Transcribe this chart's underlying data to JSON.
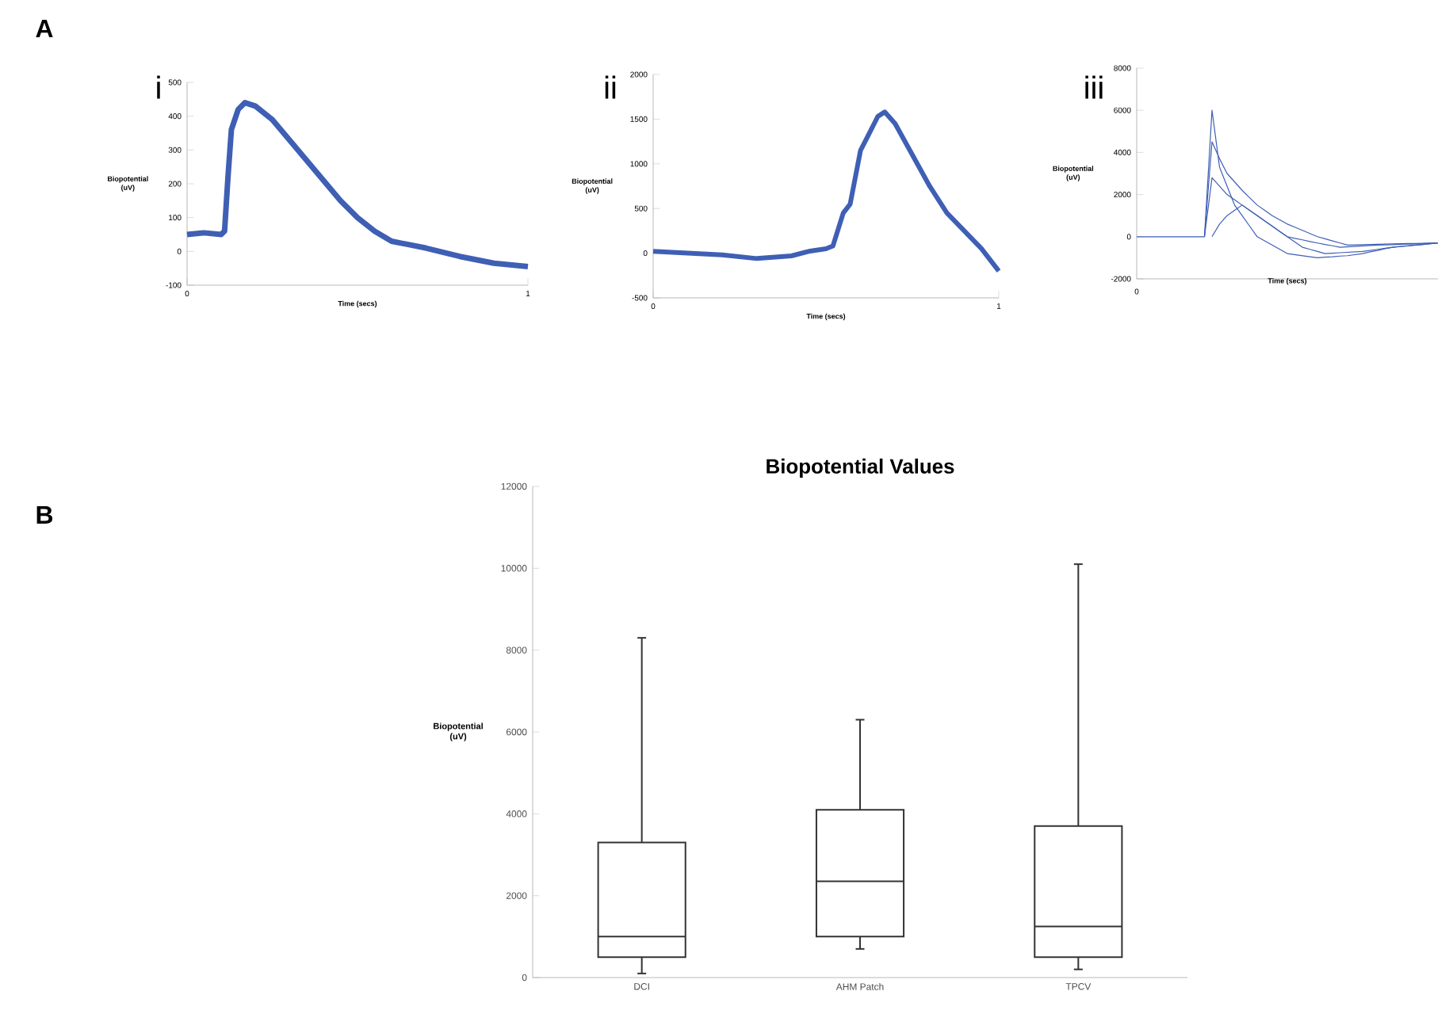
{
  "chart_data": [
    {
      "type": "line",
      "xlabel": "Time (secs)",
      "ylabel": "Biopotential (uV)",
      "annotations": [
        "A",
        "i"
      ],
      "xlim": [
        0,
        1
      ],
      "xticks": [
        0,
        1
      ],
      "ylim": [
        -100,
        500
      ],
      "yticks": [
        -100,
        0,
        100,
        200,
        300,
        400,
        500
      ],
      "x": [
        0,
        0.05,
        0.1,
        0.11,
        0.12,
        0.13,
        0.15,
        0.17,
        0.2,
        0.25,
        0.3,
        0.35,
        0.4,
        0.45,
        0.5,
        0.55,
        0.6,
        0.7,
        0.8,
        0.9,
        1
      ],
      "series": [
        {
          "color": "#3f5fb5",
          "values": [
            50,
            55,
            50,
            60,
            220,
            360,
            420,
            440,
            430,
            390,
            330,
            270,
            210,
            150,
            100,
            60,
            30,
            10,
            -15,
            -35,
            -45
          ]
        }
      ]
    },
    {
      "type": "line",
      "xlabel": "Time (secs)",
      "ylabel": "Biopotential (uV)",
      "annotations": [
        "ii"
      ],
      "xlim": [
        0,
        1
      ],
      "xticks": [
        0,
        1
      ],
      "ylim": [
        -500,
        2000
      ],
      "yticks": [
        -500,
        0,
        500,
        1000,
        1500,
        2000
      ],
      "x": [
        0,
        0.1,
        0.2,
        0.3,
        0.4,
        0.45,
        0.5,
        0.52,
        0.55,
        0.57,
        0.6,
        0.62,
        0.65,
        0.67,
        0.7,
        0.75,
        0.8,
        0.85,
        0.9,
        0.95,
        1
      ],
      "series": [
        {
          "color": "#3f5fb5",
          "values": [
            20,
            0,
            -20,
            -60,
            -30,
            20,
            50,
            80,
            450,
            550,
            1150,
            1300,
            1530,
            1580,
            1450,
            1100,
            750,
            450,
            250,
            50,
            -200
          ]
        }
      ]
    },
    {
      "type": "line",
      "xlabel": "Time (secs)",
      "ylabel": "Biopotential (uV)",
      "annotations": [
        "iii",
        "0"
      ],
      "ylim": [
        -2000,
        8000
      ],
      "yticks": [
        -2000,
        0,
        2000,
        4000,
        6000,
        8000
      ],
      "categories": [
        null,
        null,
        null,
        null,
        null,
        null,
        null,
        null,
        null,
        null,
        null,
        null,
        null,
        null,
        null,
        null,
        null,
        null,
        null,
        null,
        null,
        null,
        null,
        null,
        null,
        null,
        null,
        null,
        null,
        null,
        null,
        null,
        null,
        null,
        null,
        null,
        null,
        null,
        null,
        null,
        null
      ],
      "series": [
        {
          "color": "#3f5fb5",
          "values": [
            0,
            0,
            0,
            0,
            0,
            0,
            0,
            0,
            0,
            0,
            6000,
            3300,
            2400,
            1500,
            1000,
            500,
            0,
            -200,
            -400,
            -600,
            -800,
            -850,
            -900,
            -950,
            -1000,
            -970,
            -950,
            -920,
            -900,
            -850,
            -800,
            -720,
            -650,
            -570,
            -500,
            -460,
            -430,
            -400,
            -370,
            -330,
            -300
          ]
        },
        {
          "color": "#3f5fb5",
          "values": [
            null,
            null,
            null,
            null,
            null,
            null,
            null,
            null,
            null,
            0,
            4500,
            3700,
            3000,
            2600,
            2200,
            1850,
            1500,
            1250,
            1000,
            800,
            600,
            450,
            300,
            150,
            0,
            -100,
            -200,
            -300,
            -400,
            -390,
            -380,
            -370,
            -360,
            -350,
            -340,
            -330,
            -320,
            -320,
            -310,
            -300,
            -300
          ]
        },
        {
          "color": "#3f5fb5",
          "values": [
            null,
            null,
            null,
            null,
            null,
            null,
            null,
            null,
            null,
            0,
            2800,
            2400,
            2000,
            1750,
            1500,
            1250,
            1000,
            750,
            500,
            250,
            0,
            -80,
            -150,
            -230,
            -300,
            -370,
            -430,
            -500,
            -480,
            -460,
            -440,
            -420,
            -400,
            -390,
            -380,
            -360,
            -350,
            -340,
            -330,
            -310,
            -300
          ]
        },
        {
          "color": "#3f5fb5",
          "values": [
            null,
            null,
            null,
            null,
            null,
            null,
            null,
            null,
            null,
            null,
            0,
            600,
            1000,
            1250,
            1500,
            1250,
            1000,
            750,
            500,
            250,
            0,
            -250,
            -500,
            -600,
            -700,
            -800,
            -780,
            -760,
            -740,
            -720,
            -700,
            -650,
            -600,
            -550,
            -500,
            -470,
            -440,
            -400,
            -370,
            -330,
            -300
          ]
        }
      ]
    },
    {
      "type": "box",
      "title": "Biopotential Values",
      "ylabel": "Biopotential (uV)",
      "annotations": [
        "B"
      ],
      "categories": [
        "DCI",
        "AHM Patch",
        "TPCV"
      ],
      "ylim": [
        0,
        12000
      ],
      "yticks": [
        0,
        2000,
        4000,
        6000,
        8000,
        10000,
        12000
      ],
      "boxes": [
        {
          "low": 100,
          "q1": 500,
          "median": 1000,
          "q3": 3300,
          "high": 8300
        },
        {
          "low": 700,
          "q1": 1000,
          "median": 2350,
          "q3": 4100,
          "high": 6300
        },
        {
          "low": 200,
          "q1": 500,
          "median": 1250,
          "q3": 3700,
          "high": 10100
        }
      ]
    }
  ]
}
